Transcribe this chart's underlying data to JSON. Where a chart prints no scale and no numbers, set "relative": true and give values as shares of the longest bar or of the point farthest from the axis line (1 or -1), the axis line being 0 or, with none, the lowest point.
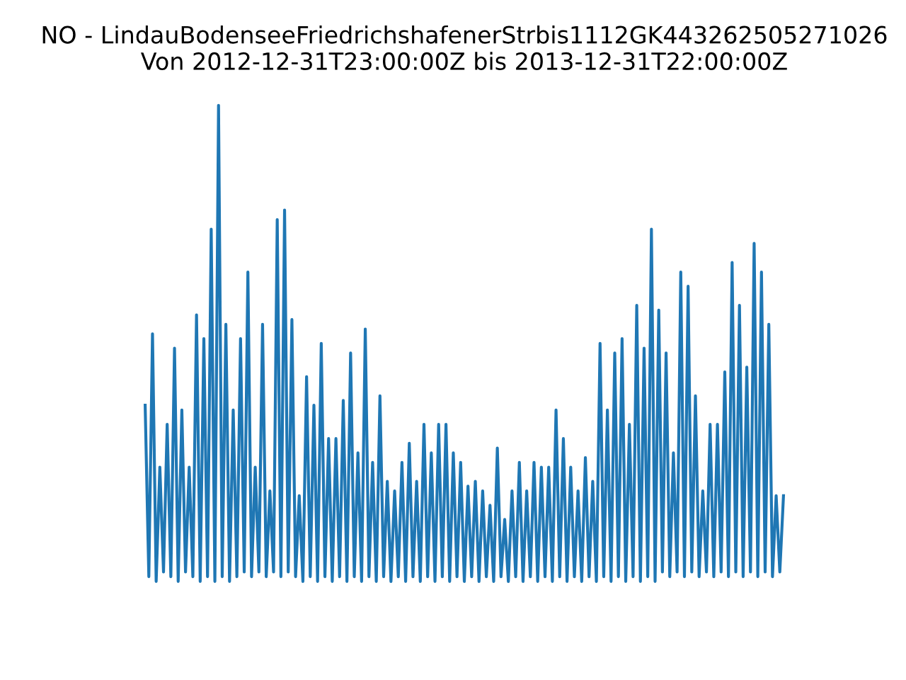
{
  "chart_data": {
    "type": "line",
    "title": "NO - LindauBodenseeFriedrichshafenerStrbis1112GK443262505271026\nVon 2012-12-31T23:00:00Z bis 2013-12-31T22:00:00Z",
    "relative": true,
    "tick_labels": false,
    "categories": [
      null,
      null,
      null,
      null,
      null,
      null,
      null,
      null,
      null,
      null,
      null,
      null,
      null,
      null,
      null,
      null,
      null,
      null,
      null,
      null,
      null,
      null,
      null,
      null,
      null,
      null,
      null,
      null,
      null,
      null,
      null,
      null,
      null,
      null,
      null,
      null,
      null,
      null,
      null,
      null,
      null,
      null,
      null,
      null,
      null,
      null,
      null,
      null,
      null,
      null,
      null,
      null,
      null,
      null,
      null,
      null,
      null,
      null,
      null,
      null,
      null,
      null,
      null,
      null,
      null,
      null,
      null,
      null,
      null,
      null,
      null,
      null,
      null,
      null,
      null,
      null,
      null,
      null,
      null,
      null,
      null,
      null,
      null,
      null,
      null,
      null,
      null,
      null,
      null,
      null,
      null,
      null,
      null,
      null,
      null,
      null,
      null,
      null,
      null,
      null,
      null,
      null,
      null,
      null,
      null,
      null,
      null,
      null,
      null,
      null,
      null,
      null,
      null,
      null,
      null,
      null,
      null,
      null,
      null,
      null,
      null,
      null,
      null,
      null,
      null,
      null,
      null,
      null,
      null,
      null,
      null,
      null,
      null,
      null,
      null,
      null,
      null,
      null,
      null,
      null,
      null,
      null,
      null,
      null,
      null,
      null,
      null,
      null,
      null,
      null,
      null,
      null,
      null,
      null,
      null,
      null,
      null,
      null,
      null,
      null,
      null,
      null,
      null,
      null,
      null,
      null,
      null,
      null,
      null,
      null,
      null,
      null,
      null,
      null,
      null
    ],
    "series": [
      {
        "color": "#1f77b4",
        "values": [
          0.37,
          0.01,
          0.52,
          0.0,
          0.24,
          0.02,
          0.33,
          0.01,
          0.49,
          0.0,
          0.36,
          0.02,
          0.24,
          0.01,
          0.56,
          0.0,
          0.51,
          0.01,
          0.74,
          0.0,
          1.0,
          0.01,
          0.54,
          0.0,
          0.36,
          0.01,
          0.51,
          0.02,
          0.65,
          0.01,
          0.24,
          0.02,
          0.54,
          0.01,
          0.19,
          0.02,
          0.76,
          0.01,
          0.78,
          0.02,
          0.55,
          0.01,
          0.18,
          0.0,
          0.43,
          0.01,
          0.37,
          0.0,
          0.5,
          0.01,
          0.3,
          0.0,
          0.3,
          0.01,
          0.38,
          0.0,
          0.48,
          0.01,
          0.27,
          0.0,
          0.53,
          0.01,
          0.25,
          0.0,
          0.39,
          0.01,
          0.21,
          0.0,
          0.19,
          0.01,
          0.25,
          0.0,
          0.29,
          0.01,
          0.21,
          0.0,
          0.33,
          0.01,
          0.27,
          0.0,
          0.33,
          0.01,
          0.33,
          0.0,
          0.27,
          0.01,
          0.25,
          0.0,
          0.2,
          0.01,
          0.21,
          0.0,
          0.19,
          0.01,
          0.16,
          0.0,
          0.28,
          0.01,
          0.13,
          0.0,
          0.19,
          0.01,
          0.25,
          0.0,
          0.19,
          0.01,
          0.25,
          0.0,
          0.24,
          0.01,
          0.24,
          0.0,
          0.36,
          0.01,
          0.3,
          0.0,
          0.24,
          0.01,
          0.19,
          0.0,
          0.26,
          0.01,
          0.21,
          0.0,
          0.5,
          0.01,
          0.36,
          0.0,
          0.48,
          0.01,
          0.51,
          0.0,
          0.33,
          0.01,
          0.58,
          0.0,
          0.49,
          0.01,
          0.74,
          0.0,
          0.57,
          0.02,
          0.48,
          0.01,
          0.27,
          0.02,
          0.65,
          0.01,
          0.62,
          0.02,
          0.39,
          0.01,
          0.19,
          0.02,
          0.33,
          0.01,
          0.33,
          0.02,
          0.44,
          0.01,
          0.67,
          0.02,
          0.58,
          0.01,
          0.45,
          0.02,
          0.71,
          0.01,
          0.65,
          0.02,
          0.54,
          0.01,
          0.18,
          0.02,
          0.18
        ]
      }
    ]
  }
}
